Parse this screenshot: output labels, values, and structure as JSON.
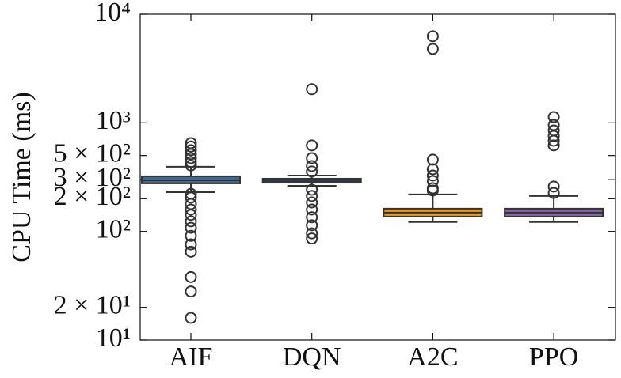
{
  "chart_data": {
    "type": "box",
    "ylabel": "CPU Time (ms)",
    "categories": [
      "AIF",
      "DQN",
      "A2C",
      "PPO"
    ],
    "colors": [
      "#3a6a97",
      "#2e3f63",
      "#e8992c",
      "#8a6aa6"
    ],
    "boxes": [
      {
        "q1": 277,
        "median": 296,
        "q3": 322,
        "whislo": 230,
        "whishi": 394,
        "fliers": [
          650,
          605,
          560,
          515,
          473,
          435,
          405,
          222,
          205,
          179,
          159,
          142,
          124,
          108,
          91,
          76,
          65,
          38,
          28,
          16
        ]
      },
      {
        "q1": 281,
        "median": 294,
        "q3": 306,
        "whislo": 263,
        "whishi": 327,
        "fliers": [
          2040,
          620,
          473,
          400,
          356,
          242,
          212,
          185,
          159,
          135,
          114,
          96,
          86
        ]
      },
      {
        "q1": 137,
        "median": 149,
        "q3": 162,
        "whislo": 122,
        "whishi": 219,
        "fliers": [
          6270,
          4790,
          458,
          374,
          327,
          291,
          250,
          238
        ]
      },
      {
        "q1": 137,
        "median": 149,
        "q3": 162,
        "whislo": 122,
        "whishi": 212,
        "fliers": [
          1130,
          957,
          851,
          757,
          684,
          620,
          259,
          226
        ]
      }
    ],
    "log_y": true,
    "ylim": [
      10,
      10000
    ],
    "yticks": [
      {
        "value": 10,
        "label": "10¹"
      },
      {
        "value": 20,
        "label": "2 × 10¹"
      },
      {
        "value": 100,
        "label": "10²"
      },
      {
        "value": 200,
        "label": "2 × 10²"
      },
      {
        "value": 300,
        "label": "3 × 10²"
      },
      {
        "value": 500,
        "label": "5 × 10²"
      },
      {
        "value": 1000,
        "label": "10³"
      },
      {
        "value": 10000,
        "label": "10⁴"
      }
    ]
  }
}
